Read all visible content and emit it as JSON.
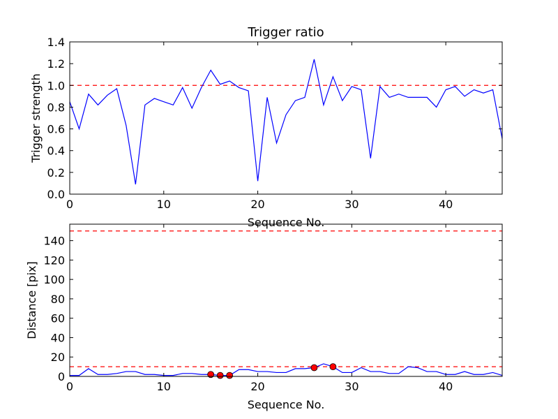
{
  "chart_data": [
    {
      "type": "line",
      "title": "Trigger ratio",
      "xlabel": "Sequence No.",
      "ylabel": "Trigger strength",
      "xlim": [
        0,
        46
      ],
      "ylim": [
        0,
        1.4
      ],
      "xticks": [
        "0",
        "10",
        "20",
        "30",
        "40"
      ],
      "xtick_values": [
        0,
        10,
        20,
        30,
        40
      ],
      "yticks": [
        "0.0",
        "0.2",
        "0.4",
        "0.6",
        "0.8",
        "1.0",
        "1.2",
        "1.4"
      ],
      "ytick_values": [
        0,
        0.2,
        0.4,
        0.6,
        0.8,
        1.0,
        1.2,
        1.4
      ],
      "grid": false,
      "line_color": "#0000ff",
      "reference_line_color": "#ff0000",
      "reference_lines": [
        1.0
      ],
      "series": [
        {
          "x": [
            0,
            1,
            2,
            3,
            4,
            5,
            6,
            7,
            8,
            9,
            10,
            11,
            12,
            13,
            14,
            15,
            16,
            17,
            18,
            19,
            20,
            21,
            22,
            23,
            24,
            25,
            26,
            27,
            28,
            29,
            30,
            31,
            32,
            33,
            34,
            35,
            36,
            37,
            38,
            39,
            40,
            41,
            42,
            43,
            44,
            45,
            46
          ],
          "y": [
            0.85,
            0.6,
            0.92,
            0.82,
            0.91,
            0.97,
            0.63,
            0.09,
            0.82,
            0.88,
            0.85,
            0.82,
            0.98,
            0.79,
            0.98,
            1.14,
            1.01,
            1.04,
            0.98,
            0.95,
            0.12,
            0.89,
            0.47,
            0.73,
            0.86,
            0.89,
            1.24,
            0.82,
            1.08,
            0.86,
            0.99,
            0.96,
            0.33,
            0.99,
            0.89,
            0.92,
            0.89,
            0.89,
            0.89,
            0.8,
            0.96,
            0.99,
            0.9,
            0.96,
            0.93,
            0.96,
            0.51
          ]
        }
      ]
    },
    {
      "type": "line",
      "title": "",
      "xlabel": "Sequence No.",
      "ylabel": "Distance [pix]",
      "xlim": [
        0,
        46
      ],
      "ylim": [
        0,
        157
      ],
      "xticks": [
        "0",
        "10",
        "20",
        "30",
        "40"
      ],
      "xtick_values": [
        0,
        10,
        20,
        30,
        40
      ],
      "yticks": [
        "0",
        "20",
        "40",
        "60",
        "80",
        "100",
        "120",
        "140"
      ],
      "ytick_values": [
        0,
        20,
        40,
        60,
        80,
        100,
        120,
        140
      ],
      "grid": false,
      "line_color": "#0000ff",
      "reference_line_color": "#ff0000",
      "marker_color": "#ff0000",
      "reference_lines": [
        10,
        150
      ],
      "series": [
        {
          "x": [
            0,
            1,
            2,
            3,
            4,
            5,
            6,
            7,
            8,
            9,
            10,
            11,
            12,
            13,
            14,
            15,
            16,
            17,
            18,
            19,
            20,
            21,
            22,
            23,
            24,
            25,
            26,
            27,
            28,
            29,
            30,
            31,
            32,
            33,
            34,
            35,
            36,
            37,
            38,
            39,
            40,
            41,
            42,
            43,
            44,
            45,
            46
          ],
          "y": [
            1,
            1,
            8,
            2,
            2,
            3,
            5,
            5,
            2,
            2,
            1,
            1,
            3,
            3,
            2,
            2,
            1,
            1,
            7,
            7,
            5,
            5,
            4,
            4,
            8,
            8,
            9,
            13,
            10,
            4,
            4,
            9,
            5,
            5,
            3,
            3,
            10,
            9,
            5,
            5,
            2,
            2,
            5,
            2,
            2,
            4,
            1
          ]
        }
      ],
      "highlighted_points": {
        "x": [
          15,
          16,
          17,
          26,
          28
        ],
        "y": [
          2,
          1,
          1,
          9,
          10
        ]
      }
    }
  ]
}
